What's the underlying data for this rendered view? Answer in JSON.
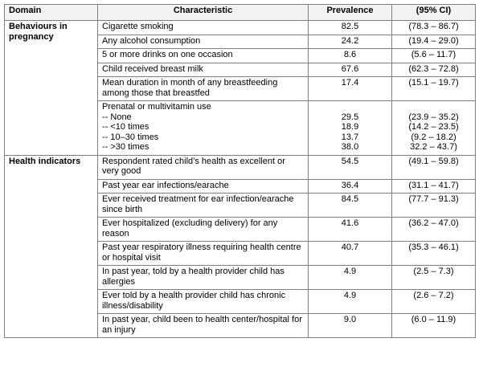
{
  "headers": {
    "domain": "Domain",
    "characteristic": "Characteristic",
    "prevalence": "Prevalence",
    "ci": "(95% CI)"
  },
  "sections": [
    {
      "domain": "Behaviours in pregnancy",
      "rows": [
        {
          "characteristic": "Cigarette smoking",
          "prevalence": "82.5",
          "ci": "(78.3 – 86.7)"
        },
        {
          "characteristic": "Any alcohol consumption",
          "prevalence": "24.2",
          "ci": "(19.4 – 29.0)"
        },
        {
          "characteristic": "5 or more drinks on one occasion",
          "prevalence": "8.6",
          "ci": "(5.6 – 11.7)"
        },
        {
          "characteristic": "Child received breast milk",
          "prevalence": "67.6",
          "ci": "(62.3 – 72.8)"
        },
        {
          "characteristic": "Mean duration in month of any breastfeeding among those that breastfed",
          "prevalence": "17.4",
          "ci": "(15.1 – 19.7)"
        }
      ],
      "multivitamin": {
        "title": "Prenatal or multivitamin use",
        "items": [
          {
            "label": "-- None",
            "prevalence": "29.5",
            "ci": "(23.9 – 35.2)"
          },
          {
            "label": "-- <10 times",
            "prevalence": "18.9",
            "ci": "(14.2 – 23.5)"
          },
          {
            "label": "-- 10–30 times",
            "prevalence": "13.7",
            "ci": "(9.2 – 18.2)"
          },
          {
            "label": "-- >30 times",
            "prevalence": "38.0",
            "ci": "32.2 – 43.7)"
          }
        ]
      }
    },
    {
      "domain": "Health indicators",
      "rows": [
        {
          "characteristic": "Respondent rated child’s health as excellent or very good",
          "prevalence": "54.5",
          "ci": "(49.1 – 59.8)"
        },
        {
          "characteristic": "Past year ear infections/earache",
          "prevalence": "36.4",
          "ci": "(31.1 – 41.7)"
        },
        {
          "characteristic": "Ever received treatment for ear infection/earache since birth",
          "prevalence": "84.5",
          "ci": "(77.7 – 91.3)"
        },
        {
          "characteristic": "Ever hospitalized (excluding delivery) for any reason",
          "prevalence": "41.6",
          "ci": "(36.2 – 47.0)"
        },
        {
          "characteristic": "Past year respiratory illness requiring health centre or hospital visit",
          "prevalence": "40.7",
          "ci": "(35.3 – 46.1)"
        },
        {
          "characteristic": "In past year, told by a health provider child has allergies",
          "prevalence": "4.9",
          "ci": "(2.5 – 7.3)"
        },
        {
          "characteristic": "Ever told by a health provider child has chronic illness/disability",
          "prevalence": "4.9",
          "ci": "(2.6 – 7.2)"
        },
        {
          "characteristic": "In past year, child been to health center/hospital for an injury",
          "prevalence": "9.0",
          "ci": "(6.0 – 11.9)"
        }
      ]
    }
  ]
}
